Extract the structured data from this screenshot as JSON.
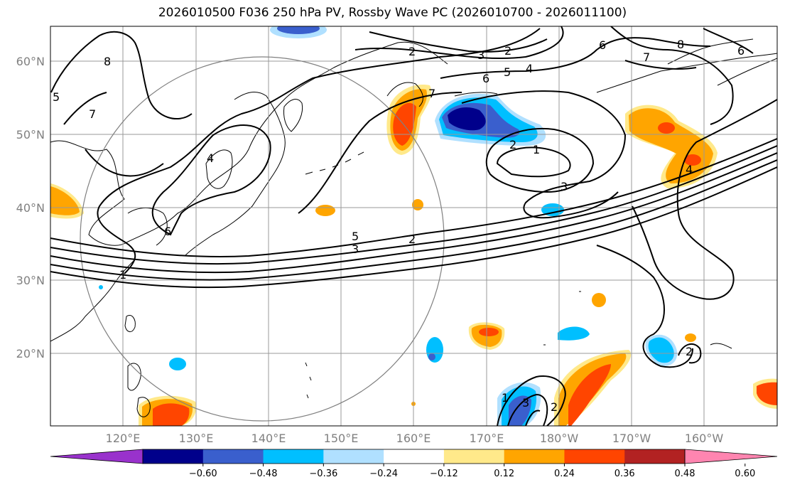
{
  "title": "2026010500 F036 250 hPa PV, Rossby Wave PC (2026010700 - 2026011100)",
  "lat_labels": [
    "60°N",
    "50°N",
    "40°N",
    "30°N",
    "20°N"
  ],
  "lon_labels": [
    "120°E",
    "130°E",
    "140°E",
    "150°E",
    "160°E",
    "170°E",
    "180°W",
    "170°W",
    "160°W"
  ],
  "colorbar": {
    "ticks": [
      "−0.60",
      "−0.48",
      "−0.36",
      "−0.24",
      "−0.12",
      "0.12",
      "0.24",
      "0.36",
      "0.48",
      "0.60"
    ],
    "colors": [
      "#9932cc",
      "#00008b",
      "#3a5fcd",
      "#00bfff",
      "#b0e0ff",
      "#ffffff",
      "#ffe98a",
      "#ffa500",
      "#ff4500",
      "#b22222",
      "#ff85b0"
    ]
  },
  "contour_labels": [
    "2",
    "3",
    "2",
    "4",
    "5",
    "6",
    "6",
    "7",
    "8",
    "6",
    "5",
    "8",
    "7",
    "4",
    "6",
    "7",
    "4",
    "1",
    "2",
    "3",
    "5",
    "3",
    "2",
    "1",
    "3",
    "2",
    "2",
    "1"
  ],
  "colors": {
    "neg_strong": "#00008b",
    "neg_mid": "#3a5fcd",
    "neg_light": "#00bfff",
    "pos_light": "#ffa500",
    "pos_strong": "#ff4500",
    "pos_faint": "#ffe98a"
  }
}
